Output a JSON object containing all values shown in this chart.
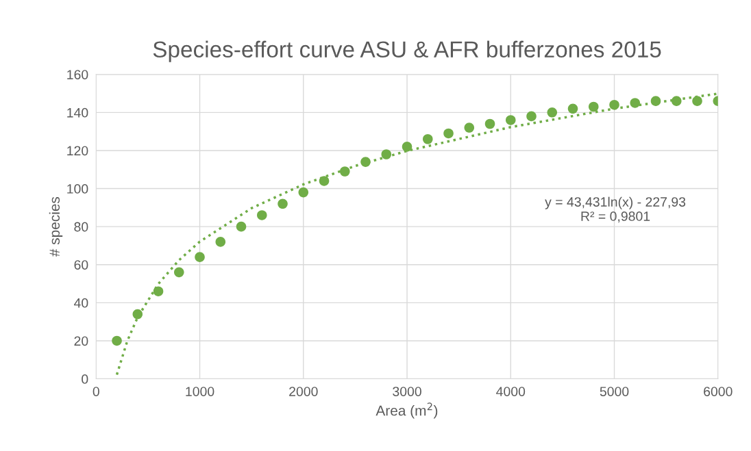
{
  "chart_data": {
    "type": "scatter",
    "title": "Species-effort curve ASU & AFR bufferzones 2015",
    "xlabel": "Area (m$^{2}$)",
    "ylabel": "# species",
    "x": [
      200,
      400,
      600,
      800,
      1000,
      1200,
      1400,
      1600,
      1800,
      2000,
      2200,
      2400,
      2600,
      2800,
      3000,
      3200,
      3400,
      3600,
      3800,
      4000,
      4200,
      4400,
      4600,
      4800,
      5000,
      5200,
      5400,
      5600,
      5800,
      6000
    ],
    "series": [
      {
        "color": "#70ad47",
        "marker": "circle",
        "values": [
          20,
          34,
          46,
          56,
          64,
          72,
          80,
          86,
          92,
          98,
          104,
          109,
          114,
          118,
          122,
          126,
          129,
          132,
          134,
          136,
          138,
          140,
          142,
          143,
          144,
          145,
          146,
          146,
          146,
          146
        ]
      },
      {
        "type": "line",
        "color": "#70ad47",
        "marker": "none",
        "line_style": "dotted",
        "x": [
          200,
          300,
          400,
          600,
          800,
          1000,
          1500,
          2000,
          2500,
          3000,
          4000,
          5000,
          6000
        ],
        "values": [
          2.2,
          19.8,
          32.3,
          49.9,
          62.4,
          72.1,
          89.7,
          102.2,
          111.9,
          119.8,
          132.3,
          142.0,
          149.9
        ]
      }
    ],
    "annotations": [
      "y = 43,431ln(x) - 227,93\nR² = 0,9801"
    ],
    "xlim": [
      0,
      6000
    ],
    "xticks": [
      0,
      1000,
      2000,
      3000,
      4000,
      5000,
      6000
    ],
    "ylim": [
      0,
      160
    ],
    "yticks": [
      0,
      20,
      40,
      60,
      80,
      100,
      120,
      140,
      160
    ],
    "grid": true,
    "legend": false
  }
}
